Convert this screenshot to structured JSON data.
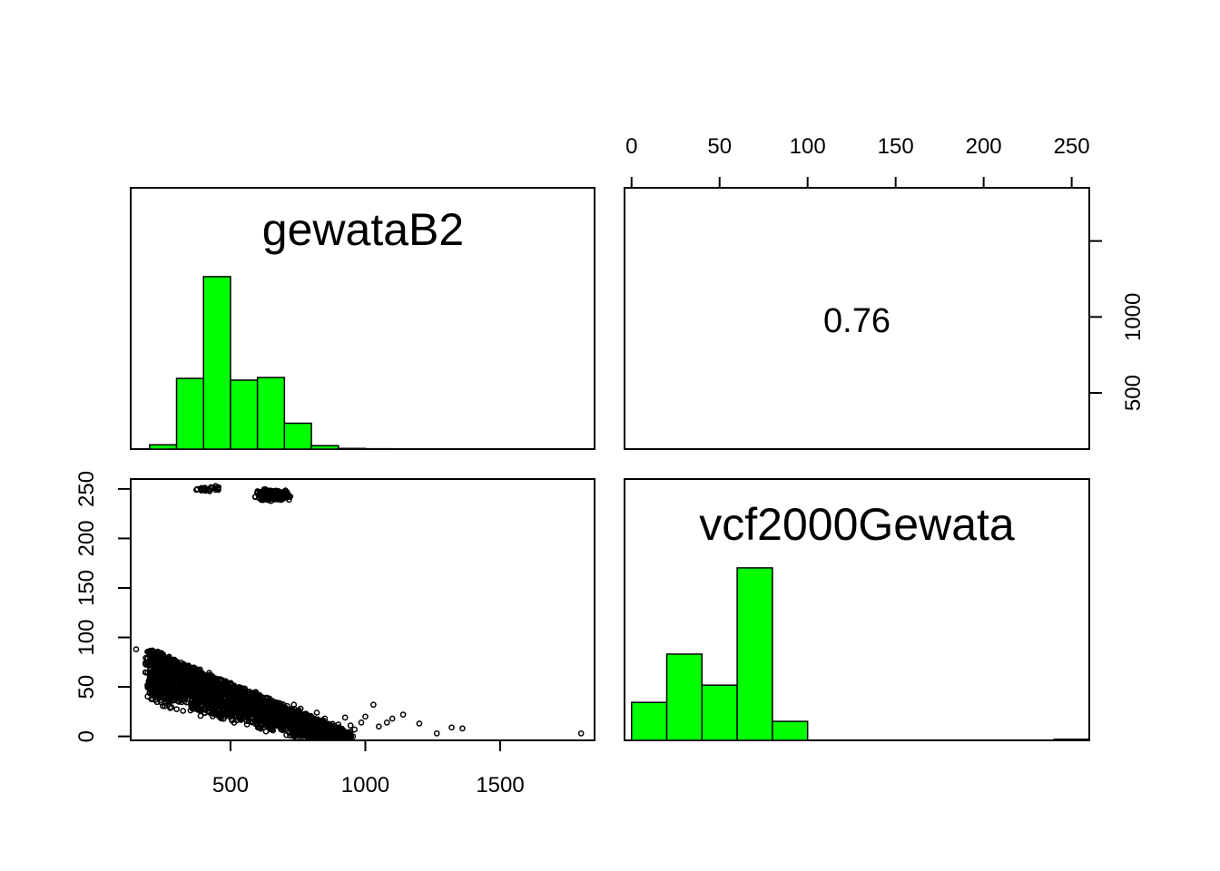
{
  "chart_data": {
    "type": "pairs",
    "variables": [
      "gewataB2",
      "vcf2000Gewata"
    ],
    "correlation": {
      "label": "0.76",
      "value": 0.76
    },
    "colors": {
      "histogram_fill": "#00ff00",
      "points": "#000000"
    },
    "axes": {
      "gewataB2": {
        "range": [
          130,
          1850
        ],
        "ticks": [
          500,
          1000,
          1500
        ]
      },
      "vcf2000Gewata": {
        "range": [
          -4,
          260
        ],
        "ticks": [
          0,
          50,
          100,
          150,
          200,
          250
        ]
      },
      "upper_right_y": {
        "ticks": [
          500,
          1000
        ]
      }
    },
    "histograms": {
      "gewataB2": {
        "bins": [
          200,
          300,
          400,
          500,
          600,
          700,
          800,
          900,
          1000,
          1100,
          1200,
          1300,
          1400,
          1500,
          1600,
          1700,
          1800
        ],
        "counts": [
          2.5,
          41,
          100,
          40,
          41.5,
          15,
          2,
          0.4,
          0.2,
          0.1,
          0.05,
          0.03,
          0.02,
          0.01,
          0.01,
          0.01
        ],
        "count_max": 100
      },
      "vcf2000Gewata": {
        "bins": [
          0,
          20,
          40,
          60,
          80,
          100,
          120,
          140,
          160,
          180,
          200,
          220,
          240,
          260
        ],
        "counts": [
          22,
          50,
          32,
          100,
          11,
          0,
          0,
          0,
          0,
          0,
          0,
          0,
          0.6
        ],
        "count_max": 100
      }
    },
    "scatter": {
      "x": [
        1800,
        1360,
        1320,
        1265,
        1200,
        1140,
        1100,
        1080,
        1050,
        1030,
        1000,
        985,
        960,
        945,
        925,
        900,
        880,
        850,
        820,
        800,
        770,
        760,
        735,
        710,
        150
      ],
      "y": [
        3,
        8,
        9,
        3,
        13,
        22,
        18,
        14,
        10,
        32,
        20,
        14,
        7,
        11,
        19,
        12,
        5,
        18,
        24,
        9,
        15,
        28,
        32,
        27,
        88
      ],
      "clusters": [
        {
          "x_center": 660,
          "x_spread": 80,
          "y_center": 244,
          "y_spread": 7,
          "n": 260
        },
        {
          "x_center": 430,
          "x_spread": 80,
          "y_center": 250,
          "y_spread": 4,
          "n": 25
        }
      ],
      "band": {
        "x_start": 200,
        "x_end": 940,
        "y_top_start": 88,
        "y_top_end": 4,
        "thickness": 55,
        "n": 2600
      }
    }
  }
}
